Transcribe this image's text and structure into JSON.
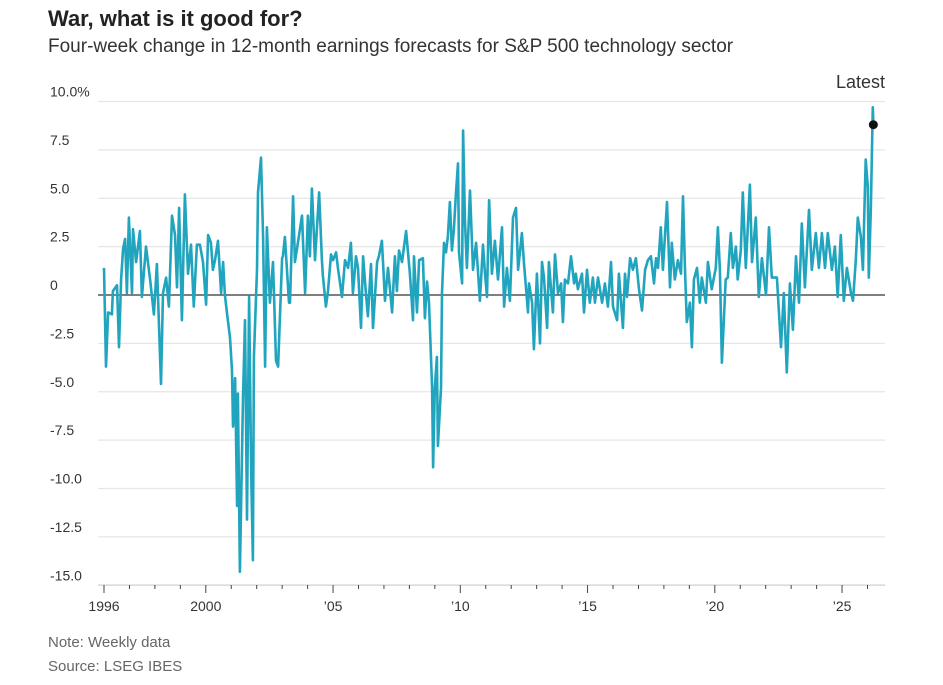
{
  "title": "War, what is it good for?",
  "subtitle": "Four-week change in 12-month earnings forecasts for S&P 500 technology sector",
  "note": "Note: Weekly data",
  "source": "Source: LSEG IBES",
  "chart_data": {
    "type": "line",
    "title": "War, what is it good for?",
    "subtitle": "Four-week change in 12-month earnings forecasts for S&P 500 technology sector",
    "xlabel": "",
    "ylabel": "",
    "ylim": [
      -15,
      10
    ],
    "xlim": [
      1996,
      2026.6
    ],
    "grid": true,
    "line_color": "#21a4be",
    "y_ticks": [
      {
        "value": 10,
        "label": "10.0%"
      },
      {
        "value": 7.5,
        "label": "7.5"
      },
      {
        "value": 5,
        "label": "5.0"
      },
      {
        "value": 2.5,
        "label": "2.5"
      },
      {
        "value": 0,
        "label": "0"
      },
      {
        "value": -2.5,
        "label": "-2.5"
      },
      {
        "value": -5,
        "label": "-5.0"
      },
      {
        "value": -7.5,
        "label": "-7.5"
      },
      {
        "value": -10,
        "label": "-10.0"
      },
      {
        "value": -12.5,
        "label": "-12.5"
      },
      {
        "value": -15,
        "label": "-15.0"
      }
    ],
    "x_ticks": [
      {
        "value": 1996,
        "label": "1996"
      },
      {
        "value": 2000,
        "label": "2000"
      },
      {
        "value": 2005,
        "label": "’05"
      },
      {
        "value": 2010,
        "label": "’10"
      },
      {
        "value": 2015,
        "label": "’15"
      },
      {
        "value": 2020,
        "label": "’20"
      },
      {
        "value": 2025,
        "label": "’25"
      }
    ],
    "annotation": {
      "label": "Latest",
      "x": 2026.23,
      "y": 8.8
    },
    "points": [
      [
        1996.0,
        1.4
      ],
      [
        1996.08,
        -3.7
      ],
      [
        1996.16,
        -0.9
      ],
      [
        1996.31,
        -1.0
      ],
      [
        1996.35,
        0.2
      ],
      [
        1996.51,
        0.5
      ],
      [
        1996.59,
        -2.7
      ],
      [
        1996.67,
        0.8
      ],
      [
        1996.75,
        2.4
      ],
      [
        1996.83,
        2.9
      ],
      [
        1996.9,
        0.1
      ],
      [
        1996.98,
        4.0
      ],
      [
        1997.1,
        0.1
      ],
      [
        1997.14,
        3.4
      ],
      [
        1997.26,
        1.7
      ],
      [
        1997.41,
        3.3
      ],
      [
        1997.49,
        -0.1
      ],
      [
        1997.65,
        2.5
      ],
      [
        1997.81,
        0.8
      ],
      [
        1997.96,
        -1.0
      ],
      [
        1998.08,
        1.6
      ],
      [
        1998.24,
        -4.6
      ],
      [
        1998.32,
        0.1
      ],
      [
        1998.44,
        0.9
      ],
      [
        1998.55,
        -0.6
      ],
      [
        1998.67,
        4.1
      ],
      [
        1998.79,
        3.1
      ],
      [
        1998.87,
        0.4
      ],
      [
        1998.95,
        4.5
      ],
      [
        1999.06,
        -1.3
      ],
      [
        1999.18,
        5.2
      ],
      [
        1999.3,
        1.1
      ],
      [
        1999.42,
        2.6
      ],
      [
        1999.53,
        -0.6
      ],
      [
        1999.65,
        2.6
      ],
      [
        1999.77,
        2.6
      ],
      [
        1999.89,
        1.7
      ],
      [
        2000.01,
        -0.5
      ],
      [
        2000.09,
        3.1
      ],
      [
        2000.2,
        2.7
      ],
      [
        2000.28,
        1.3
      ],
      [
        2000.36,
        1.8
      ],
      [
        2000.48,
        2.8
      ],
      [
        2000.6,
        0.1
      ],
      [
        2000.68,
        1.7
      ],
      [
        2000.75,
        0.0
      ],
      [
        2000.83,
        -0.9
      ],
      [
        2000.95,
        -2.2
      ],
      [
        2001.03,
        -3.9
      ],
      [
        2001.07,
        -6.8
      ],
      [
        2001.15,
        -4.3
      ],
      [
        2001.23,
        -10.9
      ],
      [
        2001.26,
        -5.1
      ],
      [
        2001.34,
        -14.3
      ],
      [
        2001.46,
        -5.3
      ],
      [
        2001.54,
        -1.3
      ],
      [
        2001.62,
        -11.6
      ],
      [
        2001.7,
        -0.1
      ],
      [
        2001.78,
        -8.9
      ],
      [
        2001.85,
        -13.7
      ],
      [
        2001.89,
        -3.2
      ],
      [
        2002.01,
        1.3
      ],
      [
        2002.05,
        5.3
      ],
      [
        2002.17,
        7.1
      ],
      [
        2002.25,
        3.0
      ],
      [
        2002.33,
        -3.7
      ],
      [
        2002.4,
        3.5
      ],
      [
        2002.52,
        -0.4
      ],
      [
        2002.64,
        1.7
      ],
      [
        2002.76,
        -3.4
      ],
      [
        2002.84,
        -3.7
      ],
      [
        2003.0,
        1.9
      ],
      [
        2003.03,
        2.0
      ],
      [
        2003.11,
        3.0
      ],
      [
        2003.27,
        -0.4
      ],
      [
        2003.31,
        -0.4
      ],
      [
        2003.43,
        5.1
      ],
      [
        2003.5,
        1.7
      ],
      [
        2003.62,
        2.7
      ],
      [
        2003.78,
        4.1
      ],
      [
        2003.9,
        0.1
      ],
      [
        2004.01,
        4.1
      ],
      [
        2004.09,
        2.0
      ],
      [
        2004.17,
        5.5
      ],
      [
        2004.29,
        1.8
      ],
      [
        2004.45,
        5.3
      ],
      [
        2004.56,
        1.8
      ],
      [
        2004.6,
        1.0
      ],
      [
        2004.72,
        -0.6
      ],
      [
        2004.8,
        0.2
      ],
      [
        2004.92,
        2.1
      ],
      [
        2005.0,
        1.8
      ],
      [
        2005.12,
        2.2
      ],
      [
        2005.19,
        1.4
      ],
      [
        2005.35,
        -0.1
      ],
      [
        2005.47,
        1.8
      ],
      [
        2005.59,
        1.4
      ],
      [
        2005.7,
        2.7
      ],
      [
        2005.78,
        0.1
      ],
      [
        2005.9,
        2.0
      ],
      [
        2005.98,
        1.4
      ],
      [
        2006.1,
        -1.7
      ],
      [
        2006.18,
        2.0
      ],
      [
        2006.29,
        0.1
      ],
      [
        2006.37,
        -1.1
      ],
      [
        2006.49,
        1.6
      ],
      [
        2006.57,
        -1.7
      ],
      [
        2006.73,
        1.7
      ],
      [
        2006.8,
        2.0
      ],
      [
        2006.92,
        2.8
      ],
      [
        2007.04,
        -0.3
      ],
      [
        2007.16,
        1.4
      ],
      [
        2007.32,
        -0.9
      ],
      [
        2007.43,
        2.0
      ],
      [
        2007.51,
        0.2
      ],
      [
        2007.59,
        2.3
      ],
      [
        2007.71,
        1.7
      ],
      [
        2007.87,
        3.3
      ],
      [
        2008.02,
        1.1
      ],
      [
        2008.14,
        -1.3
      ],
      [
        2008.18,
        2.0
      ],
      [
        2008.3,
        -0.9
      ],
      [
        2008.38,
        1.8
      ],
      [
        2008.53,
        1.9
      ],
      [
        2008.61,
        -1.2
      ],
      [
        2008.69,
        0.7
      ],
      [
        2008.77,
        -0.4
      ],
      [
        2008.89,
        -4.8
      ],
      [
        2008.93,
        -8.9
      ],
      [
        2009.0,
        -4.8
      ],
      [
        2009.08,
        -3.2
      ],
      [
        2009.12,
        -7.8
      ],
      [
        2009.24,
        -4.8
      ],
      [
        2009.28,
        0.1
      ],
      [
        2009.36,
        2.7
      ],
      [
        2009.44,
        2.2
      ],
      [
        2009.51,
        3.0
      ],
      [
        2009.59,
        4.8
      ],
      [
        2009.67,
        2.3
      ],
      [
        2009.75,
        3.4
      ],
      [
        2009.83,
        5.3
      ],
      [
        2009.91,
        6.8
      ],
      [
        2009.95,
        2.2
      ],
      [
        2010.07,
        0.6
      ],
      [
        2010.11,
        8.5
      ],
      [
        2010.18,
        3.9
      ],
      [
        2010.26,
        1.4
      ],
      [
        2010.38,
        5.4
      ],
      [
        2010.5,
        1.3
      ],
      [
        2010.62,
        2.7
      ],
      [
        2010.77,
        -0.3
      ],
      [
        2010.89,
        2.6
      ],
      [
        2010.97,
        1.1
      ],
      [
        2011.05,
        -0.1
      ],
      [
        2011.13,
        4.9
      ],
      [
        2011.24,
        1.1
      ],
      [
        2011.36,
        2.8
      ],
      [
        2011.48,
        0.8
      ],
      [
        2011.64,
        3.5
      ],
      [
        2011.72,
        -0.6
      ],
      [
        2011.83,
        1.4
      ],
      [
        2011.95,
        -0.3
      ],
      [
        2012.07,
        4.0
      ],
      [
        2012.19,
        4.5
      ],
      [
        2012.27,
        1.3
      ],
      [
        2012.42,
        3.2
      ],
      [
        2012.5,
        1.7
      ],
      [
        2012.66,
        -0.9
      ],
      [
        2012.7,
        0.6
      ],
      [
        2012.82,
        -0.4
      ],
      [
        2012.89,
        -2.8
      ],
      [
        2013.01,
        1.1
      ],
      [
        2013.13,
        -2.5
      ],
      [
        2013.21,
        1.7
      ],
      [
        2013.29,
        0.9
      ],
      [
        2013.41,
        -1.7
      ],
      [
        2013.48,
        1.7
      ],
      [
        2013.64,
        -0.9
      ],
      [
        2013.72,
        2.1
      ],
      [
        2013.84,
        0.1
      ],
      [
        2013.96,
        0.6
      ],
      [
        2014.03,
        -1.4
      ],
      [
        2014.11,
        0.8
      ],
      [
        2014.23,
        0.6
      ],
      [
        2014.35,
        2.0
      ],
      [
        2014.47,
        0.6
      ],
      [
        2014.54,
        1.1
      ],
      [
        2014.62,
        0.3
      ],
      [
        2014.78,
        1.1
      ],
      [
        2014.86,
        -0.9
      ],
      [
        2014.98,
        1.3
      ],
      [
        2015.09,
        -0.4
      ],
      [
        2015.21,
        0.9
      ],
      [
        2015.29,
        -0.4
      ],
      [
        2015.41,
        0.9
      ],
      [
        2015.57,
        -0.4
      ],
      [
        2015.68,
        0.6
      ],
      [
        2015.8,
        -0.6
      ],
      [
        2015.92,
        1.7
      ],
      [
        2016.0,
        -0.6
      ],
      [
        2016.16,
        -1.3
      ],
      [
        2016.23,
        1.1
      ],
      [
        2016.39,
        -1.7
      ],
      [
        2016.47,
        1.1
      ],
      [
        2016.55,
        -0.1
      ],
      [
        2016.67,
        1.9
      ],
      [
        2016.78,
        1.3
      ],
      [
        2016.9,
        1.9
      ],
      [
        2017.02,
        0.3
      ],
      [
        2017.14,
        -0.8
      ],
      [
        2017.26,
        1.3
      ],
      [
        2017.37,
        1.8
      ],
      [
        2017.49,
        2.0
      ],
      [
        2017.61,
        0.6
      ],
      [
        2017.69,
        1.9
      ],
      [
        2017.77,
        1.4
      ],
      [
        2017.88,
        3.5
      ],
      [
        2017.96,
        1.3
      ],
      [
        2018.12,
        4.8
      ],
      [
        2018.24,
        0.4
      ],
      [
        2018.31,
        2.7
      ],
      [
        2018.43,
        0.8
      ],
      [
        2018.55,
        1.8
      ],
      [
        2018.67,
        1.1
      ],
      [
        2018.75,
        5.1
      ],
      [
        2018.83,
        1.3
      ],
      [
        2018.9,
        -1.4
      ],
      [
        2019.02,
        -0.4
      ],
      [
        2019.1,
        -2.7
      ],
      [
        2019.18,
        0.8
      ],
      [
        2019.3,
        1.4
      ],
      [
        2019.41,
        -0.4
      ],
      [
        2019.49,
        0.9
      ],
      [
        2019.65,
        -0.4
      ],
      [
        2019.73,
        1.7
      ],
      [
        2019.88,
        0.3
      ],
      [
        2020.04,
        1.4
      ],
      [
        2020.12,
        3.5
      ],
      [
        2020.2,
        1.3
      ],
      [
        2020.28,
        -3.5
      ],
      [
        2020.43,
        0.8
      ],
      [
        2020.51,
        0.9
      ],
      [
        2020.63,
        3.2
      ],
      [
        2020.71,
        1.4
      ],
      [
        2020.83,
        2.5
      ],
      [
        2020.9,
        0.8
      ],
      [
        2021.02,
        2.3
      ],
      [
        2021.1,
        5.3
      ],
      [
        2021.22,
        1.4
      ],
      [
        2021.38,
        5.7
      ],
      [
        2021.46,
        1.7
      ],
      [
        2021.61,
        4.0
      ],
      [
        2021.73,
        -0.1
      ],
      [
        2021.85,
        1.9
      ],
      [
        2022.01,
        0.0
      ],
      [
        2022.13,
        3.5
      ],
      [
        2022.24,
        0.9
      ],
      [
        2022.44,
        0.9
      ],
      [
        2022.6,
        -2.7
      ],
      [
        2022.71,
        0.1
      ],
      [
        2022.83,
        -4.0
      ],
      [
        2022.95,
        0.6
      ],
      [
        2023.07,
        -1.8
      ],
      [
        2023.19,
        2.0
      ],
      [
        2023.31,
        -0.4
      ],
      [
        2023.42,
        3.7
      ],
      [
        2023.54,
        0.4
      ],
      [
        2023.7,
        4.4
      ],
      [
        2023.81,
        1.3
      ],
      [
        2023.97,
        3.2
      ],
      [
        2024.09,
        1.4
      ],
      [
        2024.21,
        3.2
      ],
      [
        2024.33,
        1.4
      ],
      [
        2024.44,
        3.2
      ],
      [
        2024.6,
        1.3
      ],
      [
        2024.72,
        2.5
      ],
      [
        2024.83,
        -0.1
      ],
      [
        2024.95,
        3.1
      ],
      [
        2025.07,
        -0.3
      ],
      [
        2025.19,
        1.4
      ],
      [
        2025.35,
        0.1
      ],
      [
        2025.43,
        -0.3
      ],
      [
        2025.54,
        1.8
      ],
      [
        2025.62,
        4.0
      ],
      [
        2025.74,
        3.0
      ],
      [
        2025.82,
        1.3
      ],
      [
        2025.93,
        7.0
      ],
      [
        2026.01,
        5.6
      ],
      [
        2026.05,
        0.9
      ],
      [
        2026.13,
        4.4
      ],
      [
        2026.21,
        9.7
      ],
      [
        2026.23,
        8.8
      ]
    ]
  }
}
